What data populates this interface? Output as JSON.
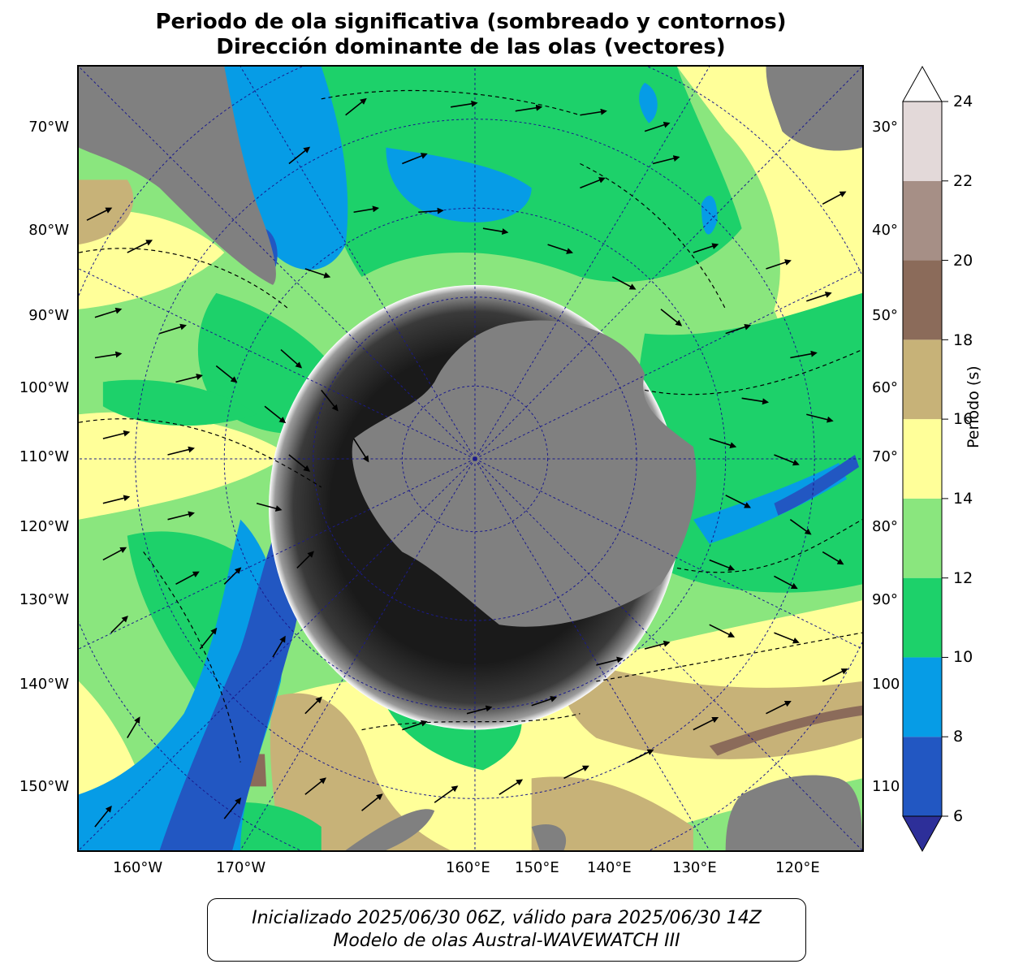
{
  "title": {
    "line1": "Periodo de ola significativa (sombreado y contornos)",
    "line2": "Dirección dominante de las olas (vectores)"
  },
  "map": {
    "projection": "south-polar-stereographic",
    "colors": {
      "land": "#808080",
      "ice_dark": "#1a1a1a",
      "ice_mid": "#3a3a3a",
      "ice_light": "#bfbfbf",
      "graticule": "#1a1a8c",
      "vector": "#000000"
    },
    "left_labels": [
      "70°W",
      "80°W",
      "90°W",
      "100°W",
      "110°W",
      "120°W",
      "130°W",
      "140°W",
      "150°W"
    ],
    "right_labels": [
      "30°",
      "40°",
      "50°",
      "60°",
      "70°",
      "80°",
      "90°",
      "100",
      "110"
    ],
    "bottom_labels": [
      "160°W",
      "170°W",
      "160°E",
      "150°E",
      "140°E",
      "130°E",
      "120°E"
    ]
  },
  "colorbar": {
    "label": "Período (s)",
    "ticks": [
      "6",
      "8",
      "10",
      "12",
      "14",
      "16",
      "18",
      "20",
      "22",
      "24"
    ],
    "bins": [
      {
        "min": 6,
        "max": 8,
        "color": "#2257c2"
      },
      {
        "min": 8,
        "max": 10,
        "color": "#069ce6"
      },
      {
        "min": 10,
        "max": 12,
        "color": "#1dd16a"
      },
      {
        "min": 12,
        "max": 14,
        "color": "#8ae67e"
      },
      {
        "min": 14,
        "max": 16,
        "color": "#ffff99"
      },
      {
        "min": 16,
        "max": 18,
        "color": "#c7b278"
      },
      {
        "min": 18,
        "max": 20,
        "color": "#8b6b5a"
      },
      {
        "min": 20,
        "max": 22,
        "color": "#a68f86"
      },
      {
        "min": 22,
        "max": 24,
        "color": "#e3d9d9"
      }
    ],
    "under_color": "#2d2f99",
    "over_color": "#ffffff"
  },
  "footer": {
    "line1": "Inicializado 2025/06/30 06Z, válido para 2025/06/30 14Z",
    "line2": "Modelo de olas Austral-WAVEWATCH III"
  }
}
